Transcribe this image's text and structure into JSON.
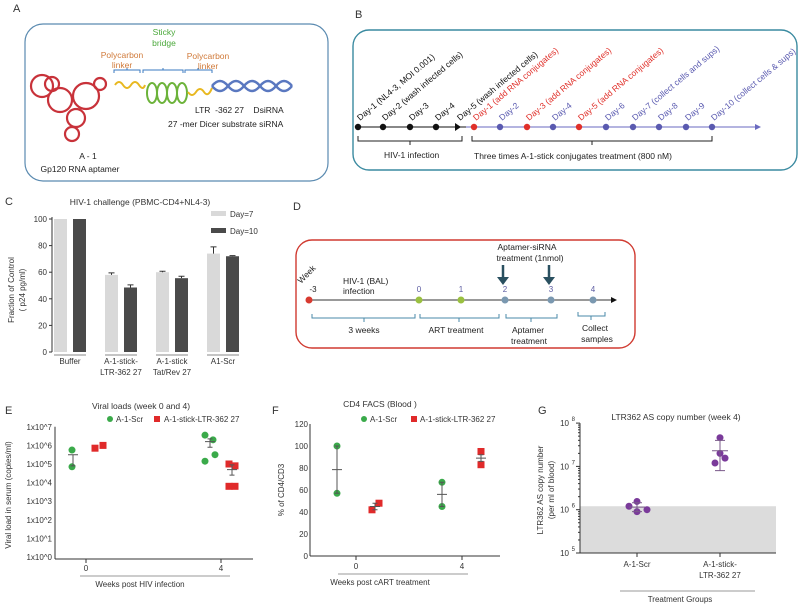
{
  "panels": {
    "A": "A",
    "B": "B",
    "C": "C",
    "D": "D",
    "E": "E",
    "F": "F",
    "G": "G"
  },
  "panel_a": {
    "linker_left": [
      "Polycarbon",
      "linker"
    ],
    "bridge": [
      "Sticky",
      "bridge"
    ],
    "linker_right": [
      "Polycarbon",
      "linker"
    ],
    "sirna": [
      "LTR  -362 27    DsiRNA",
      "27 -mer Dicer substrate siRNA"
    ],
    "aptamer": [
      "A - 1",
      "Gp120 RNA aptamer"
    ],
    "colors": {
      "aptamer": "#c8323a",
      "linker": "#e8b820",
      "bridge": "#6cb33a",
      "sirna": "#5a78c0",
      "linker_text": "#d07a3a",
      "bridge_text": "#4aa83a"
    }
  },
  "panel_b": {
    "events": [
      {
        "label": "Day-1 (NL4-3, MOI 0.001)",
        "color": "#111111"
      },
      {
        "label": "Day-2 (wash infected cells)",
        "color": "#111111"
      },
      {
        "label": "Day-3",
        "color": "#111111"
      },
      {
        "label": "Day-4",
        "color": "#111111"
      },
      {
        "label": "Day-5 (wash infected cells)",
        "color": "#111111"
      },
      {
        "label": "Day-1 (add RNA conjugates)",
        "color": "#e0302a"
      },
      {
        "label": "Day-2",
        "color": "#5a5ab0"
      },
      {
        "label": "Day-3 (add RNA conjugates)",
        "color": "#e0302a"
      },
      {
        "label": "Day-4",
        "color": "#5a5ab0"
      },
      {
        "label": "Day-5 (add RNA conjugates)",
        "color": "#e0302a"
      },
      {
        "label": "Day-6",
        "color": "#5a5ab0"
      },
      {
        "label": "Day-7 (collect cells and sups)",
        "color": "#5a5ab0"
      },
      {
        "label": "Day-8",
        "color": "#5a5ab0"
      },
      {
        "label": "Day-9",
        "color": "#5a5ab0"
      },
      {
        "label": "Day-10 (collect cells & sups)",
        "color": "#5a5ab0"
      }
    ],
    "bracket1": "HIV-1 infection",
    "bracket2": "Three times A-1-stick conjugates treatment (800 nM)"
  },
  "panel_d": {
    "week_label": "Week",
    "weeks": [
      "-3",
      "0",
      "1",
      "2",
      "3",
      "4"
    ],
    "infection": [
      "HIV-1 (BAL)",
      "infection"
    ],
    "treatment": [
      "Aptamer-siRNA",
      "treatment (1nmol)"
    ],
    "brackets": [
      [
        "3 weeks"
      ],
      [
        "ART treatment"
      ],
      [
        "Aptamer",
        "treatment"
      ],
      [
        "Collect",
        "samples"
      ]
    ]
  },
  "chart_data": [
    {
      "id": "C",
      "type": "bar",
      "title": "HIV-1 challenge (PBMC-CD4+NL4-3)",
      "ylabel": "Fraction of Control",
      "ylabel2": "( p24 pg/ml)",
      "ylim": [
        0,
        100
      ],
      "yticks": [
        "0",
        "20",
        "40",
        "60",
        "80",
        "100"
      ],
      "categories": [
        "Buffer",
        "A-1-stick-|LTR-362 27",
        "A-1-stick|Tat/Rev 27",
        "A1-Scr"
      ],
      "series": [
        {
          "name": "Day=7",
          "color": "#d9d9d9",
          "values": [
            100,
            58,
            60,
            74
          ],
          "errors": [
            0,
            1.5,
            0.7,
            5
          ]
        },
        {
          "name": "Day=10",
          "color": "#4a4a4a",
          "values": [
            100,
            48.5,
            55.5,
            72
          ],
          "errors": [
            0,
            2,
            1.5,
            0.5
          ]
        }
      ],
      "legend": "top-right"
    },
    {
      "id": "E",
      "type": "scatter",
      "title": "Viral loads (week 0 and 4)",
      "ylabel": "Viral load in serum (copies/ml)",
      "xlabel": "Weeks post HIV infection",
      "yscale": "log10",
      "ylim": [
        0,
        7
      ],
      "yticks": [
        "1x10^0",
        "1x10^1",
        "1x10^2",
        "1x10^3",
        "1x10^4",
        "1x10^5",
        "1x10^6",
        "1x10^7"
      ],
      "xticks": [
        "0",
        "4"
      ],
      "series": [
        {
          "name": "A-1-Scr",
          "color": "#3aaa4a",
          "marker": "circle",
          "points": [
            {
              "week": 0,
              "log10": [
                5.75,
                4.85
              ],
              "mean": 5.5,
              "err": [
                4.9,
                5.5
              ]
            },
            {
              "week": 4,
              "log10": [
                6.55,
                6.3,
                5.5,
                5.15
              ],
              "mean": 6.2,
              "err": [
                5.9,
                6.35
              ]
            }
          ]
        },
        {
          "name": "A-1-stick-LTR-362 27",
          "color": "#e02a2a",
          "marker": "square",
          "points": [
            {
              "week": 0,
              "log10": [
                5.85,
                6.0
              ],
              "mean": 5.93,
              "err": null
            },
            {
              "week": 4,
              "log10": [
                5.0,
                4.9,
                3.8,
                3.8
              ],
              "mean": 4.7,
              "err": [
                4.4,
                4.95
              ]
            }
          ]
        }
      ],
      "legend": "top"
    },
    {
      "id": "F",
      "type": "scatter",
      "title": "CD4 FACS (Blood )",
      "ylabel": "% of CD4/CD3",
      "xlabel": "Weeks post cART treatment",
      "ylim": [
        0,
        120
      ],
      "yticks": [
        "0",
        "20",
        "40",
        "60",
        "80",
        "100",
        "120"
      ],
      "xticks": [
        "0",
        "4"
      ],
      "series": [
        {
          "name": "A-1-Scr",
          "color": "#3aaa4a",
          "marker": "circle",
          "points": [
            {
              "week": 0,
              "values": [
                100,
                57
              ],
              "mean": 78.5,
              "err": [
                57,
                100
              ]
            },
            {
              "week": 4,
              "values": [
                67,
                45
              ],
              "mean": 56,
              "err": [
                45,
                67
              ]
            }
          ]
        },
        {
          "name": "A-1-stick-LTR-362 27",
          "color": "#e02a2a",
          "marker": "square",
          "points": [
            {
              "week": 0,
              "values": [
                42,
                48
              ],
              "mean": 45,
              "err": [
                42,
                48
              ]
            },
            {
              "week": 4,
              "values": [
                95,
                83
              ],
              "mean": 89,
              "err": [
                86,
                92
              ]
            }
          ]
        }
      ],
      "legend": "top"
    },
    {
      "id": "G",
      "type": "scatter",
      "title": "LTR362 AS copy number (week 4)",
      "ylabel": "LTR362 AS copy number",
      "ylabel2": "(per ml of blood)",
      "xlabel": "Treatment Groups",
      "yscale": "log10",
      "ylim": [
        5,
        8
      ],
      "yticks": [
        "5",
        "6",
        "7",
        "8"
      ],
      "categories": [
        "A-1-Scr",
        "A-1-stick-|LTR-362 27"
      ],
      "background_threshold_log10": 6.08,
      "color": "#7a3a9a",
      "groups": [
        {
          "values": [
            1550000.0,
            1200000.0,
            1000000.0,
            900000.0
          ],
          "mean": 1150000.0,
          "err": [
            900000.0,
            1450000.0
          ]
        },
        {
          "values": [
            46000000.0,
            20000000.0,
            15500000.0,
            12000000.0
          ],
          "mean": 23000000.0,
          "err": [
            8000000.0,
            40000000.0
          ]
        }
      ]
    }
  ]
}
